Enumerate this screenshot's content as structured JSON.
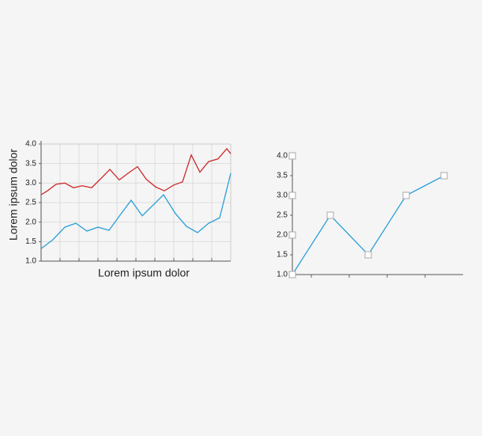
{
  "chart_data": [
    {
      "type": "line",
      "xlabel": "Lorem ipsum dolor",
      "ylabel": "Lorem ipsum dolor",
      "xlim": [
        0,
        240
      ],
      "xticks": [
        0,
        24,
        48,
        72,
        96,
        120,
        144,
        168,
        192,
        216,
        240
      ],
      "ylim": [
        1.0,
        4.0
      ],
      "yticks": [
        {
          "value": 1,
          "label": "1.0"
        },
        {
          "value": 1.5,
          "label": "1.5"
        },
        {
          "value": 2,
          "label": "2.0"
        },
        {
          "value": 2.5,
          "label": "2.5"
        },
        {
          "value": 3,
          "label": "3.0"
        },
        {
          "value": 3.5,
          "label": "3.5"
        },
        {
          "value": 4,
          "label": "4.0"
        }
      ],
      "grid": true,
      "series": [
        {
          "color": "#cc2a2a",
          "x": [
            0,
            8,
            19,
            30,
            41,
            52,
            64,
            75,
            87,
            99,
            110,
            122,
            133,
            145,
            156,
            168,
            179,
            190,
            201,
            212,
            224,
            235,
            240
          ],
          "values": [
            2.7,
            2.8,
            2.97,
            3.0,
            2.88,
            2.93,
            2.88,
            3.1,
            3.35,
            3.08,
            3.25,
            3.42,
            3.1,
            2.9,
            2.8,
            2.95,
            3.03,
            3.72,
            3.28,
            3.55,
            3.62,
            3.88,
            3.75
          ]
        },
        {
          "color": "#2a9fd8",
          "x": [
            0,
            15,
            30,
            44,
            58,
            72,
            86,
            100,
            114,
            128,
            142,
            155,
            170,
            184,
            198,
            212,
            226,
            240
          ],
          "values": [
            1.32,
            1.55,
            1.87,
            1.97,
            1.77,
            1.87,
            1.79,
            2.18,
            2.56,
            2.16,
            2.44,
            2.7,
            2.22,
            1.89,
            1.73,
            1.97,
            2.11,
            3.25
          ]
        }
      ]
    },
    {
      "type": "line",
      "xlim": [
        0,
        4.5
      ],
      "xticks": [
        0.5,
        1.5,
        2.5,
        3.5
      ],
      "ylim": [
        1.0,
        4.0
      ],
      "yticks": [
        {
          "value": 1,
          "label": "1.0"
        },
        {
          "value": 1.5,
          "label": "1.5"
        },
        {
          "value": 2,
          "label": "2.0"
        },
        {
          "value": 2.5,
          "label": "2.5"
        },
        {
          "value": 3,
          "label": "3.0"
        },
        {
          "value": 3.5,
          "label": "3.5"
        },
        {
          "value": 4,
          "label": "4.0"
        }
      ],
      "grid": false,
      "series": [
        {
          "color": "#2a9fd8",
          "x": [
            0,
            1,
            2,
            3,
            4
          ],
          "values": [
            1.0,
            2.5,
            1.5,
            3.0,
            3.5
          ],
          "markers": true
        },
        {
          "color": null,
          "x": [
            0,
            0,
            0
          ],
          "values": [
            2.0,
            3.0,
            4.0
          ],
          "markers": true
        }
      ]
    }
  ]
}
